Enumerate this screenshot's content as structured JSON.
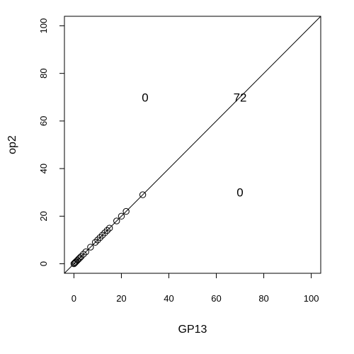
{
  "chart_data": {
    "type": "scatter",
    "title": "",
    "xlabel": "GP13",
    "ylabel": "op2",
    "xlim": [
      -4,
      104
    ],
    "ylim": [
      -4,
      104
    ],
    "xticks": [
      "0",
      "20",
      "40",
      "60",
      "80",
      "100"
    ],
    "yticks": [
      "0",
      "20",
      "40",
      "60",
      "80",
      "100"
    ],
    "grid": false,
    "reference_line": {
      "slope": 1,
      "intercept": 0
    },
    "points": {
      "x": [
        0,
        0.3,
        0.6,
        1,
        1.5,
        2,
        2.5,
        3,
        4,
        5,
        7,
        9,
        10,
        11,
        12,
        13,
        14,
        15,
        18,
        20,
        22,
        29
      ],
      "y": [
        0,
        0.3,
        0.6,
        1,
        1.5,
        2,
        2.5,
        3,
        4,
        5,
        7,
        9,
        10,
        11,
        12,
        13,
        14,
        15,
        18,
        20,
        22,
        29
      ]
    },
    "annotations": [
      {
        "text": "0",
        "x": 30,
        "y": 70
      },
      {
        "text": "72",
        "x": 70,
        "y": 70
      },
      {
        "text": "0",
        "x": 70,
        "y": 30
      }
    ]
  }
}
